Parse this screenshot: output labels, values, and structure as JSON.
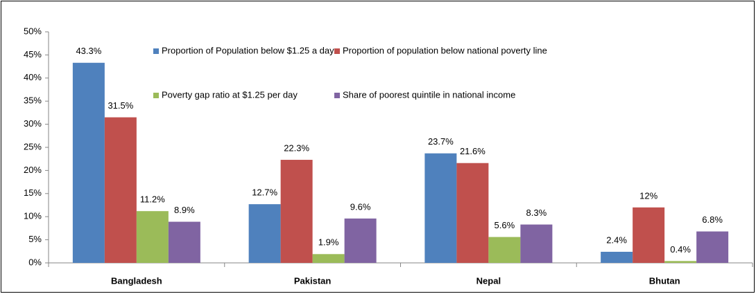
{
  "chart_data": {
    "type": "bar",
    "categories": [
      "Bangladesh",
      "Pakistan",
      "Nepal",
      "Bhutan"
    ],
    "series": [
      {
        "name": "Proportion of Population below $1.25 a day",
        "color": "#4f81bd",
        "values": [
          43.3,
          12.7,
          23.7,
          2.4
        ],
        "value_labels": [
          "43.3%",
          "12.7%",
          "23.7%",
          "2.4%"
        ]
      },
      {
        "name": "Proportion of population below national poverty line",
        "color": "#c0504d",
        "values": [
          31.5,
          22.3,
          21.6,
          12
        ],
        "value_labels": [
          "31.5%",
          "22.3%",
          "21.6%",
          "12%"
        ]
      },
      {
        "name": "Poverty gap ratio at $1.25 per day",
        "color": "#9bbb59",
        "values": [
          11.2,
          1.9,
          5.6,
          0.4
        ],
        "value_labels": [
          "11.2%",
          "1.9%",
          "5.6%",
          "0.4%"
        ]
      },
      {
        "name": "Share of poorest quintile in national income",
        "color": "#8064a2",
        "values": [
          8.9,
          9.6,
          8.3,
          6.8
        ],
        "value_labels": [
          "8.9%",
          "9.6%",
          "8.3%",
          "6.8%"
        ]
      }
    ],
    "ylim": [
      0,
      50
    ],
    "yticks": [
      {
        "value": 0,
        "label": "0%"
      },
      {
        "value": 5,
        "label": "5%"
      },
      {
        "value": 10,
        "label": "10%"
      },
      {
        "value": 15,
        "label": "15%"
      },
      {
        "value": 20,
        "label": "20%"
      },
      {
        "value": 25,
        "label": "25%"
      },
      {
        "value": 30,
        "label": "30%"
      },
      {
        "value": 35,
        "label": "35%"
      },
      {
        "value": 40,
        "label": "40%"
      },
      {
        "value": 45,
        "label": "45%"
      },
      {
        "value": 50,
        "label": "50%"
      }
    ],
    "grid": false
  }
}
